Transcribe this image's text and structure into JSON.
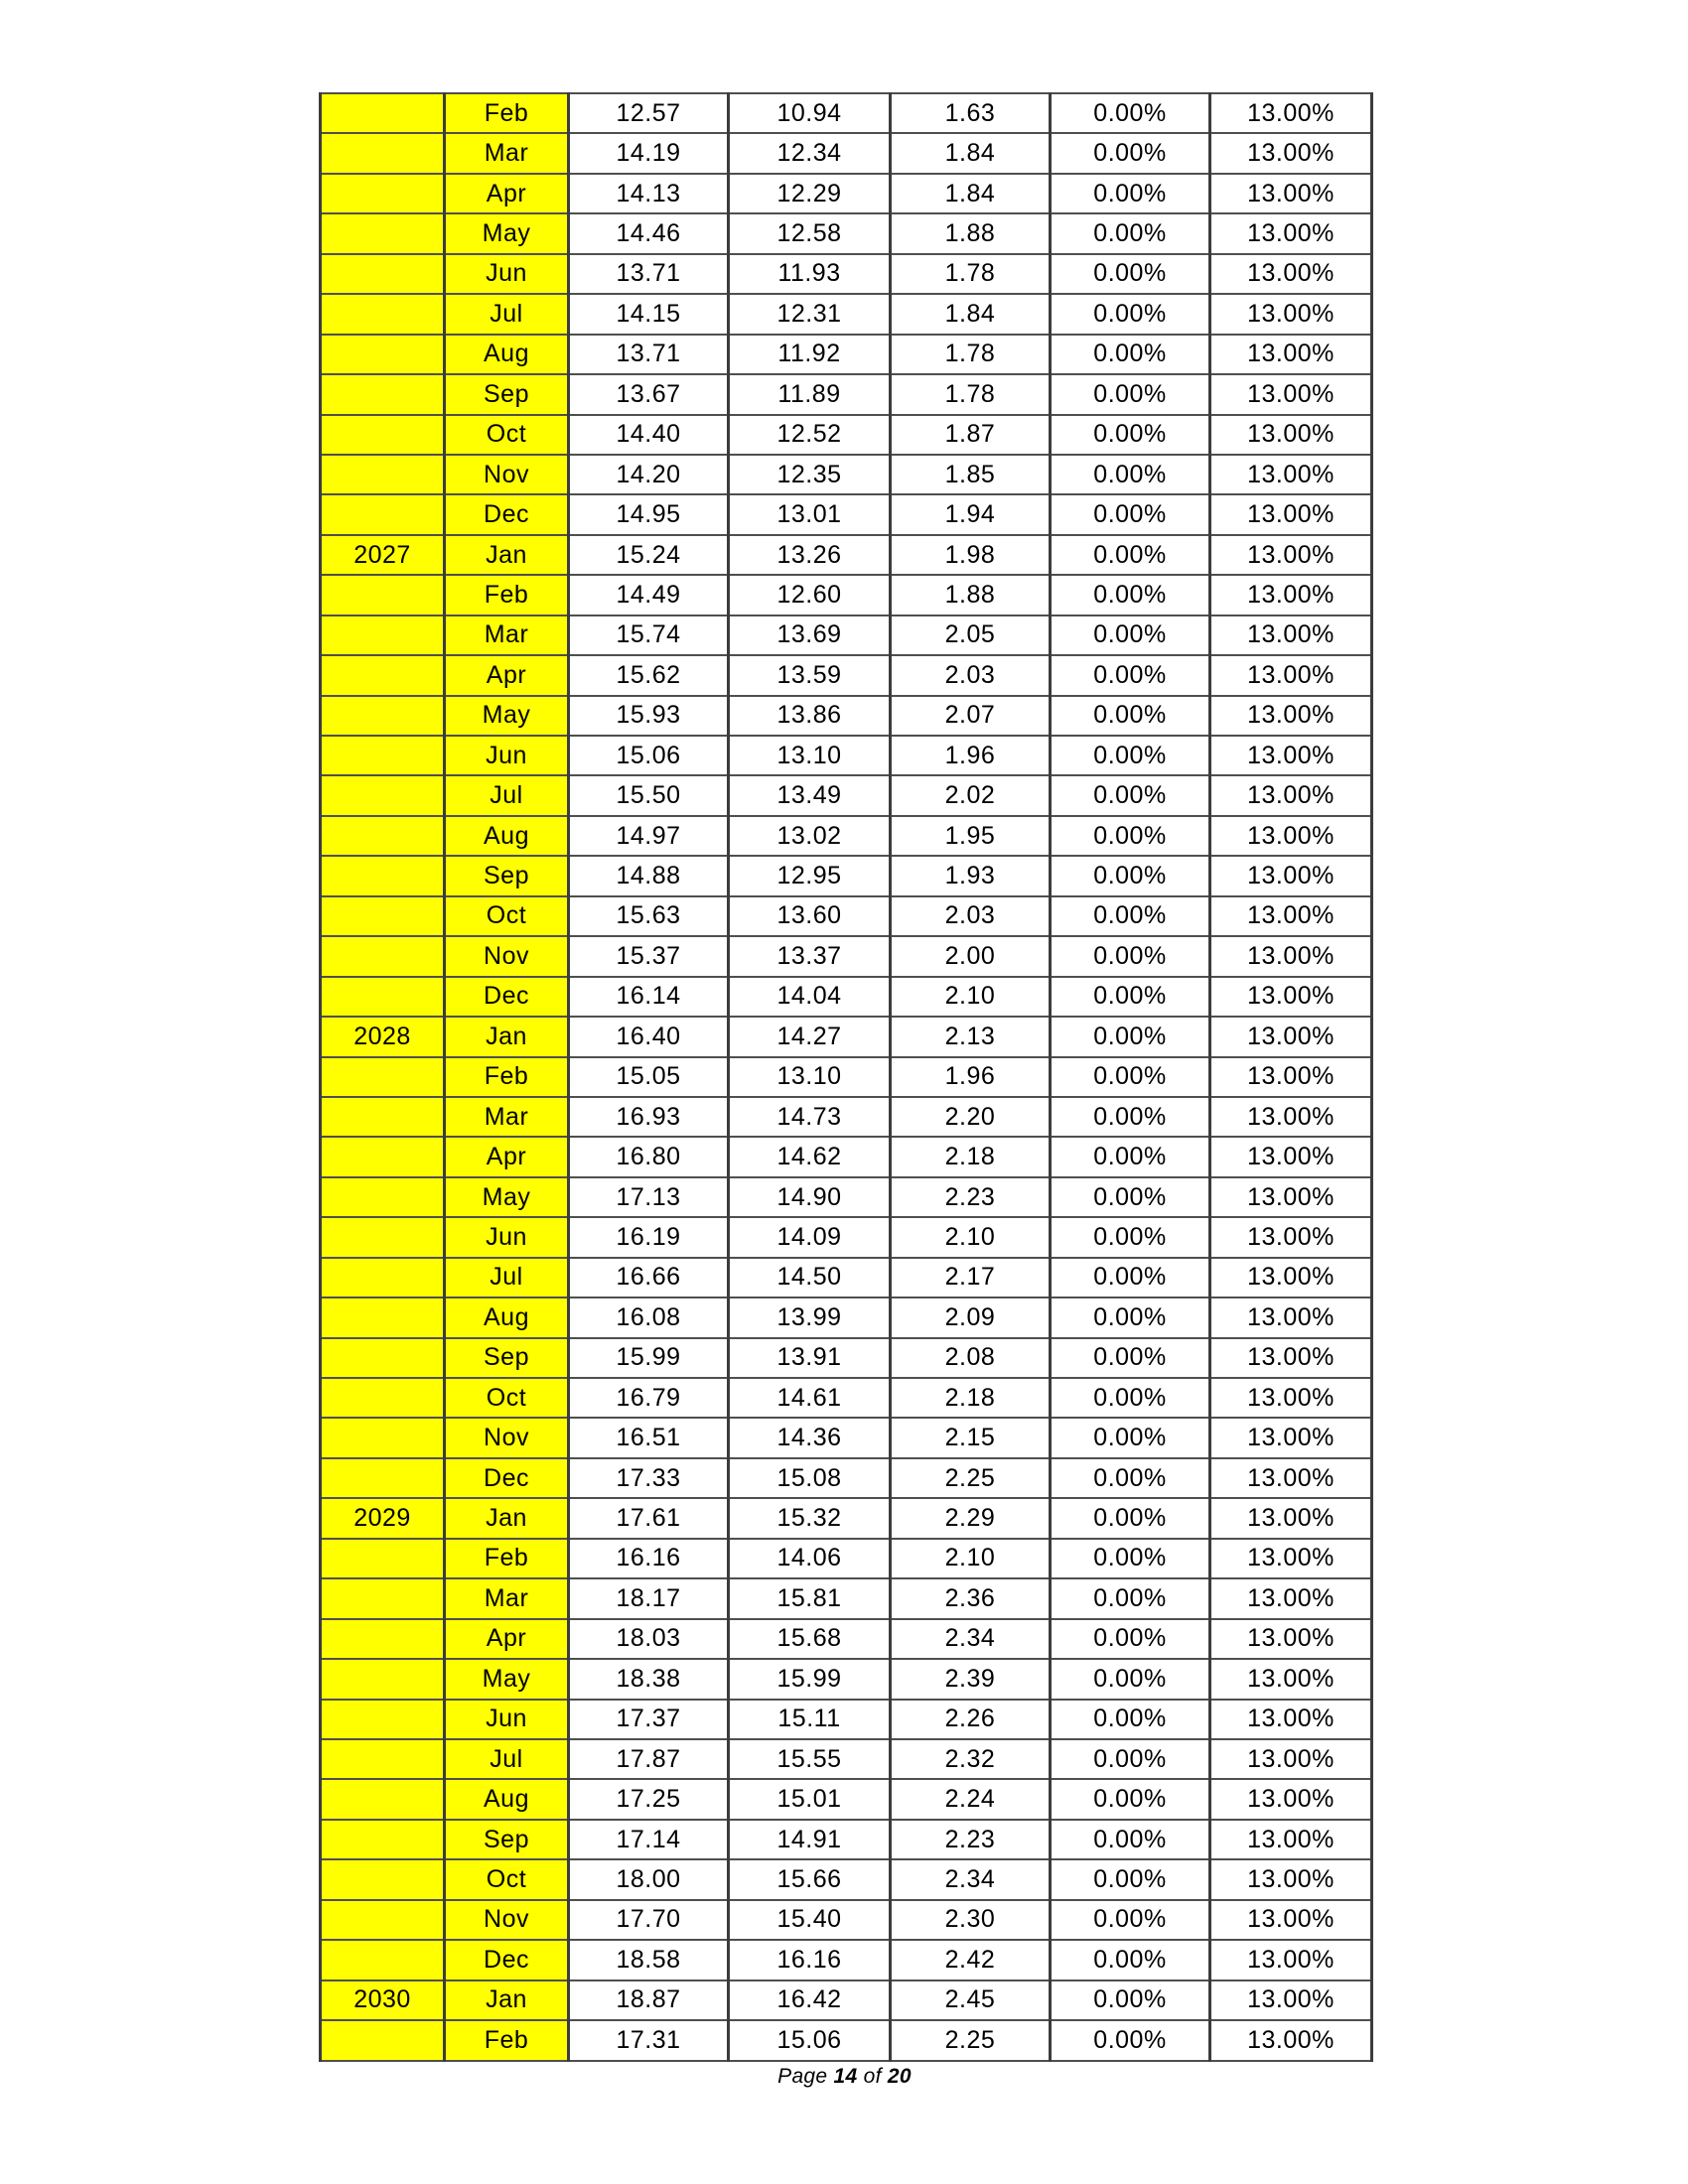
{
  "colors": {
    "highlight": "#ffff00",
    "border_vertical": "#3c3c3c",
    "border_horizontal": "#4f4f4f",
    "text": "#000000",
    "page_background": "#ffffff"
  },
  "table": {
    "column_names": [
      "year-cell",
      "month-cell",
      "value1-cell",
      "value2-cell",
      "value3-cell",
      "rate1-cell",
      "rate2-cell"
    ],
    "rows": [
      [
        "",
        "Feb",
        "12.57",
        "10.94",
        "1.63",
        "0.00%",
        "13.00%"
      ],
      [
        "",
        "Mar",
        "14.19",
        "12.34",
        "1.84",
        "0.00%",
        "13.00%"
      ],
      [
        "",
        "Apr",
        "14.13",
        "12.29",
        "1.84",
        "0.00%",
        "13.00%"
      ],
      [
        "",
        "May",
        "14.46",
        "12.58",
        "1.88",
        "0.00%",
        "13.00%"
      ],
      [
        "",
        "Jun",
        "13.71",
        "11.93",
        "1.78",
        "0.00%",
        "13.00%"
      ],
      [
        "",
        "Jul",
        "14.15",
        "12.31",
        "1.84",
        "0.00%",
        "13.00%"
      ],
      [
        "",
        "Aug",
        "13.71",
        "11.92",
        "1.78",
        "0.00%",
        "13.00%"
      ],
      [
        "",
        "Sep",
        "13.67",
        "11.89",
        "1.78",
        "0.00%",
        "13.00%"
      ],
      [
        "",
        "Oct",
        "14.40",
        "12.52",
        "1.87",
        "0.00%",
        "13.00%"
      ],
      [
        "",
        "Nov",
        "14.20",
        "12.35",
        "1.85",
        "0.00%",
        "13.00%"
      ],
      [
        "",
        "Dec",
        "14.95",
        "13.01",
        "1.94",
        "0.00%",
        "13.00%"
      ],
      [
        "2027",
        "Jan",
        "15.24",
        "13.26",
        "1.98",
        "0.00%",
        "13.00%"
      ],
      [
        "",
        "Feb",
        "14.49",
        "12.60",
        "1.88",
        "0.00%",
        "13.00%"
      ],
      [
        "",
        "Mar",
        "15.74",
        "13.69",
        "2.05",
        "0.00%",
        "13.00%"
      ],
      [
        "",
        "Apr",
        "15.62",
        "13.59",
        "2.03",
        "0.00%",
        "13.00%"
      ],
      [
        "",
        "May",
        "15.93",
        "13.86",
        "2.07",
        "0.00%",
        "13.00%"
      ],
      [
        "",
        "Jun",
        "15.06",
        "13.10",
        "1.96",
        "0.00%",
        "13.00%"
      ],
      [
        "",
        "Jul",
        "15.50",
        "13.49",
        "2.02",
        "0.00%",
        "13.00%"
      ],
      [
        "",
        "Aug",
        "14.97",
        "13.02",
        "1.95",
        "0.00%",
        "13.00%"
      ],
      [
        "",
        "Sep",
        "14.88",
        "12.95",
        "1.93",
        "0.00%",
        "13.00%"
      ],
      [
        "",
        "Oct",
        "15.63",
        "13.60",
        "2.03",
        "0.00%",
        "13.00%"
      ],
      [
        "",
        "Nov",
        "15.37",
        "13.37",
        "2.00",
        "0.00%",
        "13.00%"
      ],
      [
        "",
        "Dec",
        "16.14",
        "14.04",
        "2.10",
        "0.00%",
        "13.00%"
      ],
      [
        "2028",
        "Jan",
        "16.40",
        "14.27",
        "2.13",
        "0.00%",
        "13.00%"
      ],
      [
        "",
        "Feb",
        "15.05",
        "13.10",
        "1.96",
        "0.00%",
        "13.00%"
      ],
      [
        "",
        "Mar",
        "16.93",
        "14.73",
        "2.20",
        "0.00%",
        "13.00%"
      ],
      [
        "",
        "Apr",
        "16.80",
        "14.62",
        "2.18",
        "0.00%",
        "13.00%"
      ],
      [
        "",
        "May",
        "17.13",
        "14.90",
        "2.23",
        "0.00%",
        "13.00%"
      ],
      [
        "",
        "Jun",
        "16.19",
        "14.09",
        "2.10",
        "0.00%",
        "13.00%"
      ],
      [
        "",
        "Jul",
        "16.66",
        "14.50",
        "2.17",
        "0.00%",
        "13.00%"
      ],
      [
        "",
        "Aug",
        "16.08",
        "13.99",
        "2.09",
        "0.00%",
        "13.00%"
      ],
      [
        "",
        "Sep",
        "15.99",
        "13.91",
        "2.08",
        "0.00%",
        "13.00%"
      ],
      [
        "",
        "Oct",
        "16.79",
        "14.61",
        "2.18",
        "0.00%",
        "13.00%"
      ],
      [
        "",
        "Nov",
        "16.51",
        "14.36",
        "2.15",
        "0.00%",
        "13.00%"
      ],
      [
        "",
        "Dec",
        "17.33",
        "15.08",
        "2.25",
        "0.00%",
        "13.00%"
      ],
      [
        "2029",
        "Jan",
        "17.61",
        "15.32",
        "2.29",
        "0.00%",
        "13.00%"
      ],
      [
        "",
        "Feb",
        "16.16",
        "14.06",
        "2.10",
        "0.00%",
        "13.00%"
      ],
      [
        "",
        "Mar",
        "18.17",
        "15.81",
        "2.36",
        "0.00%",
        "13.00%"
      ],
      [
        "",
        "Apr",
        "18.03",
        "15.68",
        "2.34",
        "0.00%",
        "13.00%"
      ],
      [
        "",
        "May",
        "18.38",
        "15.99",
        "2.39",
        "0.00%",
        "13.00%"
      ],
      [
        "",
        "Jun",
        "17.37",
        "15.11",
        "2.26",
        "0.00%",
        "13.00%"
      ],
      [
        "",
        "Jul",
        "17.87",
        "15.55",
        "2.32",
        "0.00%",
        "13.00%"
      ],
      [
        "",
        "Aug",
        "17.25",
        "15.01",
        "2.24",
        "0.00%",
        "13.00%"
      ],
      [
        "",
        "Sep",
        "17.14",
        "14.91",
        "2.23",
        "0.00%",
        "13.00%"
      ],
      [
        "",
        "Oct",
        "18.00",
        "15.66",
        "2.34",
        "0.00%",
        "13.00%"
      ],
      [
        "",
        "Nov",
        "17.70",
        "15.40",
        "2.30",
        "0.00%",
        "13.00%"
      ],
      [
        "",
        "Dec",
        "18.58",
        "16.16",
        "2.42",
        "0.00%",
        "13.00%"
      ],
      [
        "2030",
        "Jan",
        "18.87",
        "16.42",
        "2.45",
        "0.00%",
        "13.00%"
      ],
      [
        "",
        "Feb",
        "17.31",
        "15.06",
        "2.25",
        "0.00%",
        "13.00%"
      ]
    ]
  },
  "footer": {
    "prefix": "Page ",
    "page_number": "14",
    "separator": " of ",
    "total_pages": "20"
  }
}
